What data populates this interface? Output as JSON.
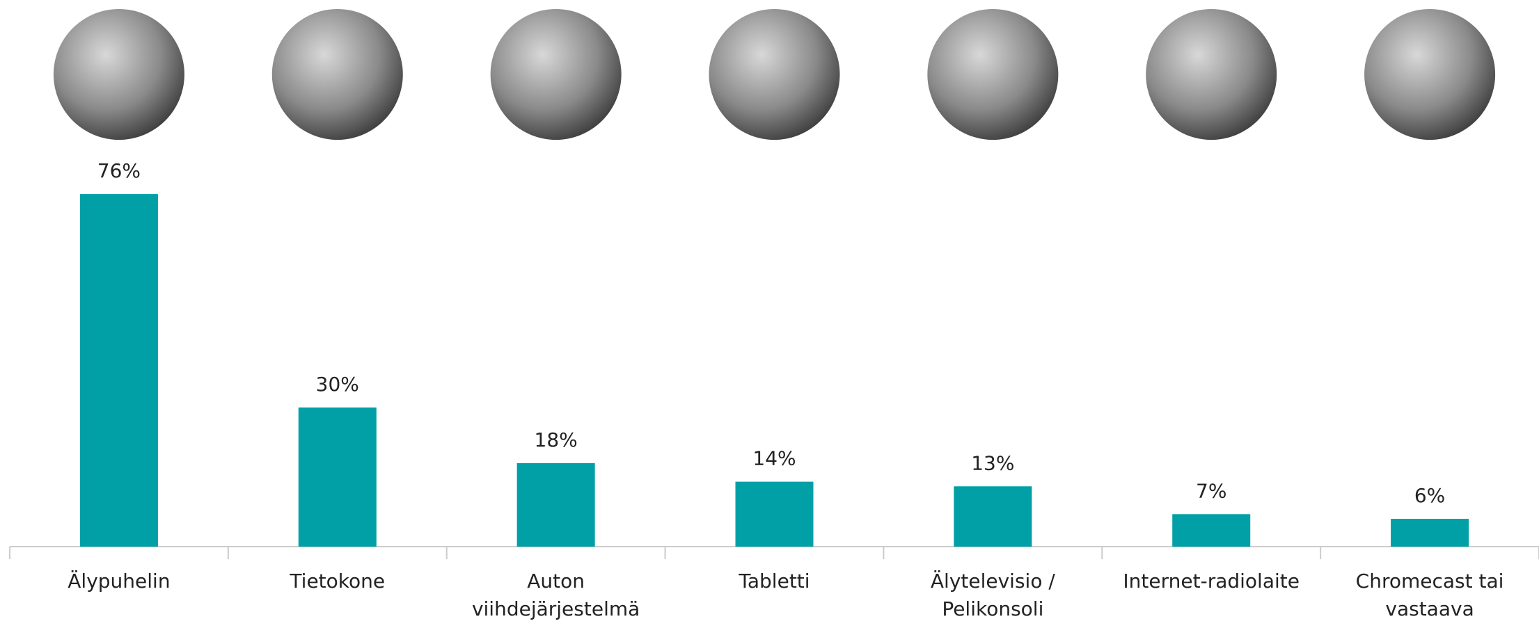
{
  "chart_data": {
    "type": "bar",
    "categories": [
      "Älypuhelin",
      "Tietokone",
      "Auton viihdejärjestelmä",
      "Tabletti",
      "Älytelevisio / Pelikonsoli",
      "Internet-radiolaite",
      "Chromecast tai vastaava"
    ],
    "values": [
      76,
      30,
      18,
      14,
      13,
      7,
      6
    ],
    "value_labels": [
      "76%",
      "30%",
      "18%",
      "14%",
      "13%",
      "7%",
      "6%"
    ],
    "color": "#00a0a6"
  }
}
